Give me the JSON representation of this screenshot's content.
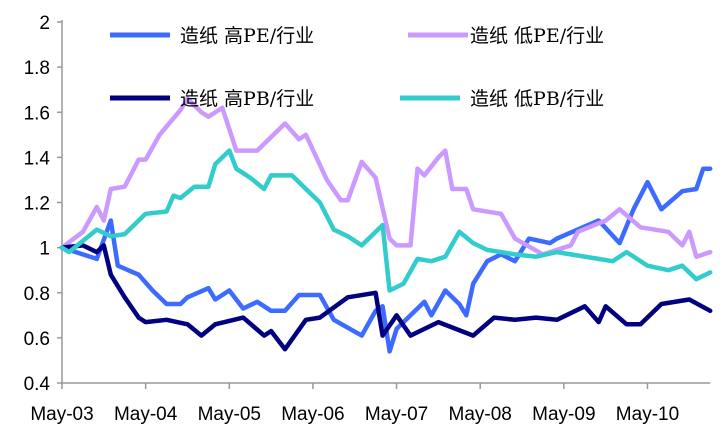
{
  "chart_data": {
    "type": "line",
    "title": "",
    "xlabel": "",
    "ylabel": "",
    "ylim": [
      0.4,
      2
    ],
    "yticks": [
      "0.4",
      "0.6",
      "0.8",
      "1",
      "1.2",
      "1.4",
      "1.6",
      "1.8",
      "2"
    ],
    "xticks": [
      "May-03",
      "May-04",
      "May-05",
      "May-06",
      "May-07",
      "May-08",
      "May-09",
      "May-10"
    ],
    "xlim": [
      "2003-05",
      "2011-02"
    ],
    "grid": false,
    "legend_position": "top",
    "series": [
      {
        "name": "造纸  高PE/行业",
        "color": "#3d6bff",
        "points": [
          [
            "2003-05",
            1.0
          ],
          [
            "2003-10",
            0.95
          ],
          [
            "2003-12",
            1.12
          ],
          [
            "2004-01",
            0.92
          ],
          [
            "2004-04",
            0.88
          ],
          [
            "2004-06",
            0.81
          ],
          [
            "2004-08",
            0.75
          ],
          [
            "2004-10",
            0.75
          ],
          [
            "2004-11",
            0.78
          ],
          [
            "2005-02",
            0.82
          ],
          [
            "2005-03",
            0.77
          ],
          [
            "2005-05",
            0.81
          ],
          [
            "2005-07",
            0.73
          ],
          [
            "2005-09",
            0.76
          ],
          [
            "2005-11",
            0.72
          ],
          [
            "2006-01",
            0.72
          ],
          [
            "2006-03",
            0.79
          ],
          [
            "2006-06",
            0.79
          ],
          [
            "2006-08",
            0.68
          ],
          [
            "2006-12",
            0.61
          ],
          [
            "2007-02",
            0.72
          ],
          [
            "2007-03",
            0.74
          ],
          [
            "2007-04",
            0.54
          ],
          [
            "2007-05",
            0.64
          ],
          [
            "2007-07",
            0.7
          ],
          [
            "2007-09",
            0.76
          ],
          [
            "2007-10",
            0.7
          ],
          [
            "2007-12",
            0.81
          ],
          [
            "2008-02",
            0.75
          ],
          [
            "2008-03",
            0.7
          ],
          [
            "2008-04",
            0.84
          ],
          [
            "2008-06",
            0.94
          ],
          [
            "2008-08",
            0.97
          ],
          [
            "2008-10",
            0.94
          ],
          [
            "2008-12",
            1.04
          ],
          [
            "2009-03",
            1.02
          ],
          [
            "2009-04",
            1.04
          ],
          [
            "2009-10",
            1.12
          ],
          [
            "2010-01",
            1.02
          ],
          [
            "2010-03",
            1.17
          ],
          [
            "2010-05",
            1.29
          ],
          [
            "2010-07",
            1.17
          ],
          [
            "2010-10",
            1.25
          ],
          [
            "2010-12",
            1.26
          ],
          [
            "2011-01",
            1.35
          ],
          [
            "2011-02",
            1.35
          ]
        ]
      },
      {
        "name": "造纸  低PE/行业",
        "color": "#cc99ff",
        "points": [
          [
            "2003-05",
            1.0
          ],
          [
            "2003-08",
            1.07
          ],
          [
            "2003-10",
            1.18
          ],
          [
            "2003-11",
            1.12
          ],
          [
            "2003-12",
            1.26
          ],
          [
            "2004-02",
            1.27
          ],
          [
            "2004-04",
            1.39
          ],
          [
            "2004-05",
            1.39
          ],
          [
            "2004-07",
            1.5
          ],
          [
            "2004-10",
            1.61
          ],
          [
            "2004-11",
            1.66
          ],
          [
            "2005-01",
            1.6
          ],
          [
            "2005-02",
            1.58
          ],
          [
            "2005-04",
            1.62
          ],
          [
            "2005-06",
            1.43
          ],
          [
            "2005-09",
            1.43
          ],
          [
            "2006-01",
            1.55
          ],
          [
            "2006-03",
            1.48
          ],
          [
            "2006-04",
            1.5
          ],
          [
            "2006-07",
            1.3
          ],
          [
            "2006-09",
            1.21
          ],
          [
            "2006-10",
            1.21
          ],
          [
            "2006-12",
            1.38
          ],
          [
            "2007-02",
            1.31
          ],
          [
            "2007-04",
            1.04
          ],
          [
            "2007-05",
            1.01
          ],
          [
            "2007-07",
            1.01
          ],
          [
            "2007-08",
            1.35
          ],
          [
            "2007-09",
            1.32
          ],
          [
            "2007-11",
            1.4
          ],
          [
            "2007-12",
            1.43
          ],
          [
            "2008-01",
            1.26
          ],
          [
            "2008-03",
            1.26
          ],
          [
            "2008-04",
            1.17
          ],
          [
            "2008-08",
            1.15
          ],
          [
            "2008-10",
            1.04
          ],
          [
            "2009-02",
            0.97
          ],
          [
            "2009-06",
            1.01
          ],
          [
            "2009-07",
            1.07
          ],
          [
            "2009-11",
            1.12
          ],
          [
            "2010-01",
            1.17
          ],
          [
            "2010-04",
            1.09
          ],
          [
            "2010-08",
            1.07
          ],
          [
            "2010-10",
            1.01
          ],
          [
            "2010-11",
            1.07
          ],
          [
            "2010-12",
            0.96
          ],
          [
            "2011-02",
            0.98
          ]
        ]
      },
      {
        "name": "造纸  高PB/行业",
        "color": "#000080",
        "points": [
          [
            "2003-05",
            1.0
          ],
          [
            "2003-08",
            1.01
          ],
          [
            "2003-10",
            0.98
          ],
          [
            "2003-11",
            1.01
          ],
          [
            "2003-12",
            0.88
          ],
          [
            "2004-02",
            0.78
          ],
          [
            "2004-04",
            0.69
          ],
          [
            "2004-05",
            0.67
          ],
          [
            "2004-08",
            0.68
          ],
          [
            "2004-11",
            0.66
          ],
          [
            "2005-01",
            0.61
          ],
          [
            "2005-03",
            0.66
          ],
          [
            "2005-07",
            0.69
          ],
          [
            "2005-10",
            0.61
          ],
          [
            "2005-11",
            0.63
          ],
          [
            "2006-01",
            0.55
          ],
          [
            "2006-04",
            0.68
          ],
          [
            "2006-06",
            0.69
          ],
          [
            "2006-10",
            0.78
          ],
          [
            "2007-02",
            0.8
          ],
          [
            "2007-03",
            0.61
          ],
          [
            "2007-05",
            0.7
          ],
          [
            "2007-07",
            0.61
          ],
          [
            "2007-11",
            0.67
          ],
          [
            "2008-04",
            0.61
          ],
          [
            "2008-07",
            0.69
          ],
          [
            "2008-10",
            0.68
          ],
          [
            "2009-01",
            0.69
          ],
          [
            "2009-04",
            0.68
          ],
          [
            "2009-08",
            0.74
          ],
          [
            "2009-10",
            0.67
          ],
          [
            "2009-11",
            0.74
          ],
          [
            "2010-02",
            0.66
          ],
          [
            "2010-04",
            0.66
          ],
          [
            "2010-07",
            0.75
          ],
          [
            "2010-11",
            0.77
          ],
          [
            "2011-02",
            0.72
          ]
        ]
      },
      {
        "name": "造纸  低PB/行业",
        "color": "#33cccc",
        "points": [
          [
            "2003-05",
            1.0
          ],
          [
            "2003-06",
            0.98
          ],
          [
            "2003-10",
            1.08
          ],
          [
            "2003-12",
            1.05
          ],
          [
            "2004-02",
            1.06
          ],
          [
            "2004-05",
            1.15
          ],
          [
            "2004-08",
            1.16
          ],
          [
            "2004-09",
            1.23
          ],
          [
            "2004-10",
            1.22
          ],
          [
            "2004-12",
            1.27
          ],
          [
            "2005-02",
            1.27
          ],
          [
            "2005-03",
            1.37
          ],
          [
            "2005-05",
            1.43
          ],
          [
            "2005-06",
            1.35
          ],
          [
            "2005-08",
            1.31
          ],
          [
            "2005-10",
            1.26
          ],
          [
            "2005-11",
            1.32
          ],
          [
            "2006-02",
            1.32
          ],
          [
            "2006-04",
            1.26
          ],
          [
            "2006-06",
            1.2
          ],
          [
            "2006-08",
            1.08
          ],
          [
            "2006-10",
            1.05
          ],
          [
            "2006-12",
            1.01
          ],
          [
            "2007-03",
            1.1
          ],
          [
            "2007-04",
            0.81
          ],
          [
            "2007-06",
            0.84
          ],
          [
            "2007-08",
            0.95
          ],
          [
            "2007-10",
            0.94
          ],
          [
            "2007-12",
            0.96
          ],
          [
            "2008-02",
            1.07
          ],
          [
            "2008-04",
            1.02
          ],
          [
            "2008-06",
            0.99
          ],
          [
            "2008-10",
            0.97
          ],
          [
            "2009-01",
            0.96
          ],
          [
            "2009-04",
            0.98
          ],
          [
            "2009-10",
            0.95
          ],
          [
            "2009-12",
            0.94
          ],
          [
            "2010-02",
            0.98
          ],
          [
            "2010-05",
            0.92
          ],
          [
            "2010-08",
            0.9
          ],
          [
            "2010-10",
            0.92
          ],
          [
            "2010-12",
            0.86
          ],
          [
            "2011-02",
            0.89
          ]
        ]
      }
    ]
  }
}
